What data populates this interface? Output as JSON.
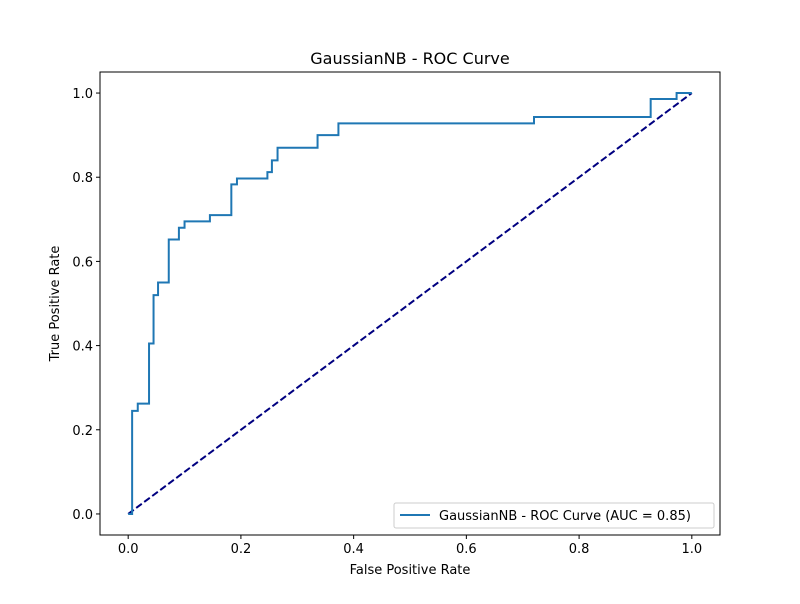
{
  "chart_data": {
    "type": "line",
    "title": "GaussianNB - ROC Curve",
    "xlabel": "False Positive Rate",
    "ylabel": "True Positive Rate",
    "xlim": [
      -0.05,
      1.05
    ],
    "ylim": [
      -0.05,
      1.05
    ],
    "xticks": [
      "0.0",
      "0.2",
      "0.4",
      "0.6",
      "0.8",
      "1.0"
    ],
    "yticks": [
      "0.0",
      "0.2",
      "0.4",
      "0.6",
      "0.8",
      "1.0"
    ],
    "grid": false,
    "legend_position": "lower right",
    "series": [
      {
        "name": "GaussianNB - ROC Curve (AUC = 0.85)",
        "color": "#1f77b4",
        "style": "solid",
        "step": true,
        "x": [
          0.0,
          0.007,
          0.007,
          0.017,
          0.017,
          0.037,
          0.037,
          0.045,
          0.045,
          0.053,
          0.053,
          0.072,
          0.072,
          0.09,
          0.09,
          0.1,
          0.1,
          0.145,
          0.145,
          0.183,
          0.183,
          0.193,
          0.193,
          0.247,
          0.247,
          0.255,
          0.255,
          0.265,
          0.265,
          0.336,
          0.336,
          0.373,
          0.373,
          0.72,
          0.72,
          0.927,
          0.927,
          0.973,
          0.973,
          1.0
        ],
        "y": [
          0.0,
          0.0,
          0.245,
          0.245,
          0.262,
          0.262,
          0.405,
          0.405,
          0.52,
          0.52,
          0.55,
          0.55,
          0.652,
          0.652,
          0.68,
          0.68,
          0.695,
          0.695,
          0.71,
          0.71,
          0.783,
          0.783,
          0.797,
          0.797,
          0.812,
          0.812,
          0.84,
          0.84,
          0.87,
          0.87,
          0.9,
          0.9,
          0.928,
          0.928,
          0.943,
          0.943,
          0.986,
          0.986,
          1.0,
          1.0
        ]
      },
      {
        "color": "#000080",
        "style": "dashed",
        "x": [
          0.0,
          1.0
        ],
        "y": [
          0.0,
          1.0
        ]
      }
    ]
  }
}
